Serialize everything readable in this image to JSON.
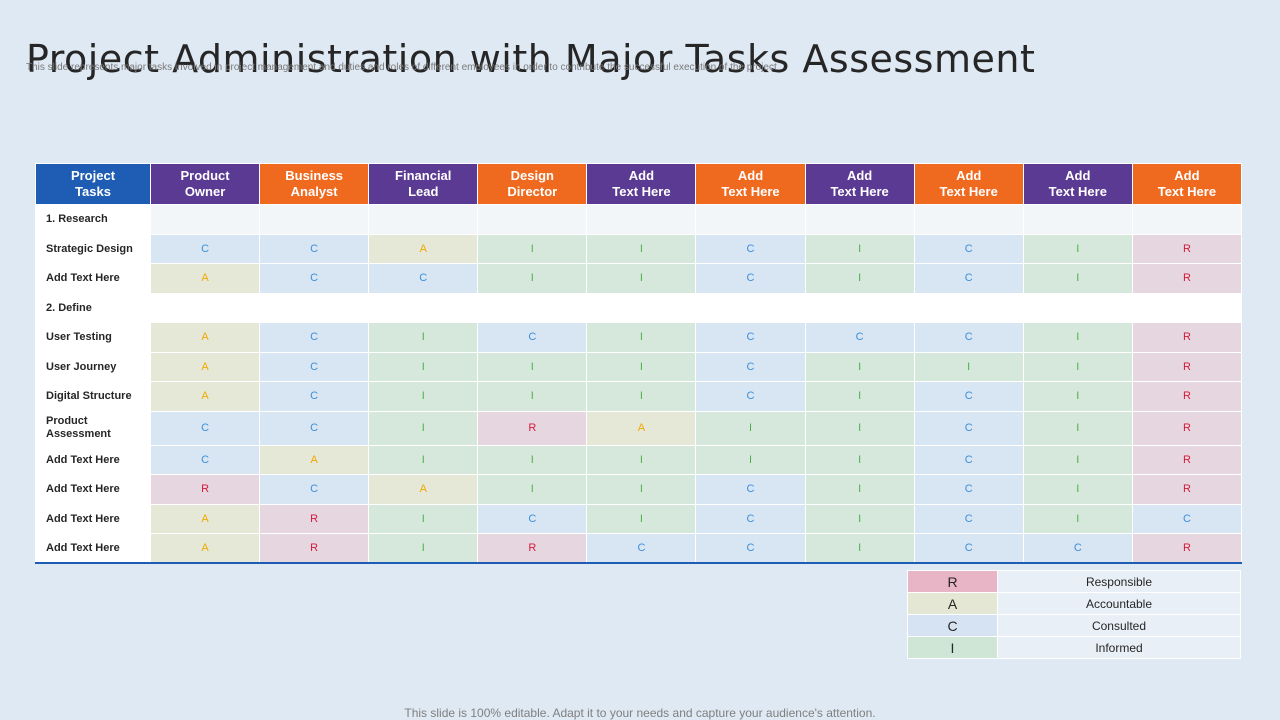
{
  "title": "Project Administration with Major Tasks Assessment",
  "subtitle": "This slide represents major tasks involved in project management and duties and roles of different employees in order to contribute the successful execution of the project",
  "footer": "This slide is 100% editable. Adapt it to your needs and capture your audience's attention.",
  "colors": {
    "blue": "#1f5db4",
    "purple": "#5b3a93",
    "orange": "#ef6a1f",
    "background": "#dfe9f3"
  },
  "table": {
    "headers": [
      {
        "line1": "Project",
        "line2": "Tasks",
        "color": "blue"
      },
      {
        "line1": "Product",
        "line2": "Owner",
        "color": "purple"
      },
      {
        "line1": "Business",
        "line2": "Analyst",
        "color": "orange"
      },
      {
        "line1": "Financial",
        "line2": "Lead",
        "color": "purple"
      },
      {
        "line1": "Design",
        "line2": "Director",
        "color": "orange"
      },
      {
        "line1": "Add",
        "line2": "Text Here",
        "color": "purple"
      },
      {
        "line1": "Add",
        "line2": "Text Here",
        "color": "orange"
      },
      {
        "line1": "Add",
        "line2": "Text Here",
        "color": "purple"
      },
      {
        "line1": "Add",
        "line2": "Text Here",
        "color": "orange"
      },
      {
        "line1": "Add",
        "line2": "Text Here",
        "color": "purple"
      },
      {
        "line1": "Add",
        "line2": "Text Here",
        "color": "orange"
      }
    ],
    "rows": [
      {
        "label": "1. Research",
        "section": true,
        "cells": []
      },
      {
        "label": "Strategic Design",
        "cells": [
          "C",
          "C",
          "A",
          "I",
          "I",
          "C",
          "I",
          "C",
          "I",
          "R"
        ]
      },
      {
        "label": "Add Text Here",
        "cells": [
          "A",
          "C",
          "C",
          "I",
          "I",
          "C",
          "I",
          "C",
          "I",
          "R"
        ]
      },
      {
        "label": "2. Define",
        "section": true,
        "cells": []
      },
      {
        "label": "User Testing",
        "cells": [
          "A",
          "C",
          "I",
          "C",
          "I",
          "C",
          "C",
          "C",
          "I",
          "R"
        ]
      },
      {
        "label": "User Journey",
        "cells": [
          "A",
          "C",
          "I",
          "I",
          "I",
          "C",
          "I",
          "I",
          "I",
          "R"
        ]
      },
      {
        "label": "Digital Structure",
        "cells": [
          "A",
          "C",
          "I",
          "I",
          "I",
          "C",
          "I",
          "C",
          "I",
          "R"
        ]
      },
      {
        "label": "Product Assessment",
        "cells": [
          "C",
          "C",
          "I",
          "R",
          "A",
          "I",
          "I",
          "C",
          "I",
          "R"
        ]
      },
      {
        "label": "Add Text Here",
        "cells": [
          "C",
          "A",
          "I",
          "I",
          "I",
          "I",
          "I",
          "C",
          "I",
          "R"
        ]
      },
      {
        "label": "Add Text Here",
        "cells": [
          "R",
          "C",
          "A",
          "I",
          "I",
          "C",
          "I",
          "C",
          "I",
          "R"
        ]
      },
      {
        "label": "Add Text Here",
        "cells": [
          "A",
          "R",
          "I",
          "C",
          "I",
          "C",
          "I",
          "C",
          "I",
          "C"
        ]
      },
      {
        "label": "Add Text Here",
        "cells": [
          "A",
          "R",
          "I",
          "R",
          "C",
          "C",
          "I",
          "C",
          "C",
          "R"
        ]
      }
    ]
  },
  "legend": [
    {
      "code": "R",
      "label": "Responsible"
    },
    {
      "code": "A",
      "label": "Accountable"
    },
    {
      "code": "C",
      "label": "Consulted"
    },
    {
      "code": "I",
      "label": "Informed"
    }
  ]
}
